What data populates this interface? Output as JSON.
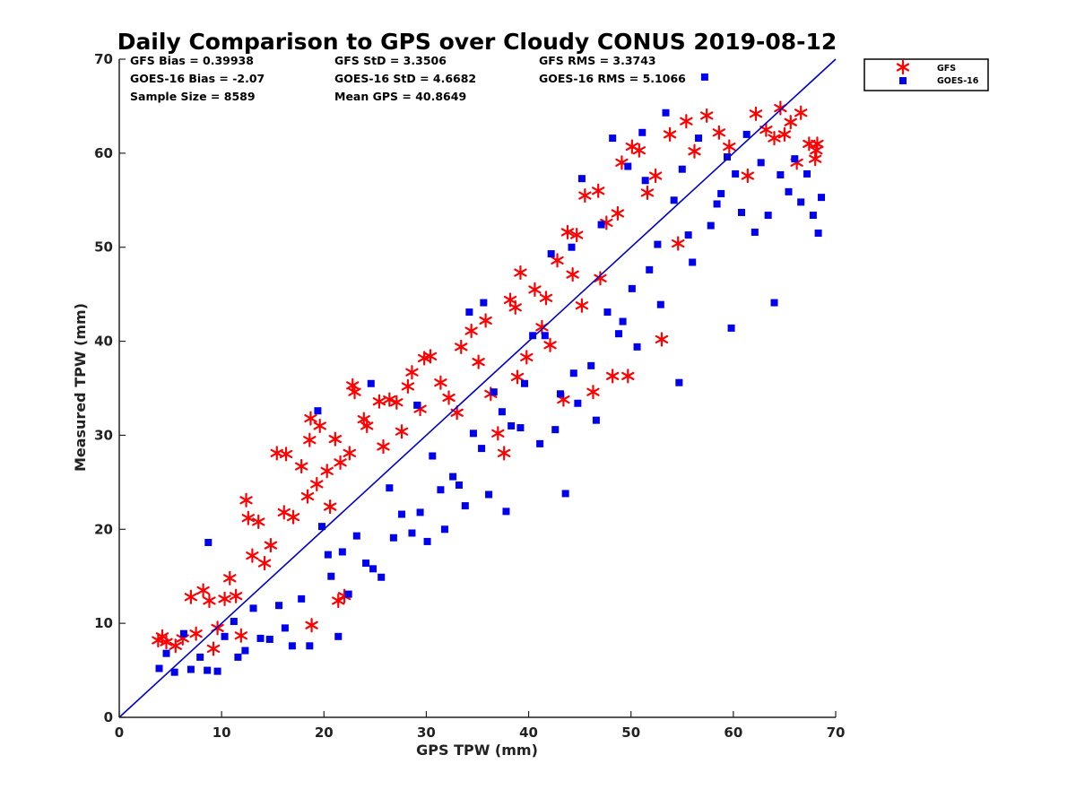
{
  "chart_data": {
    "type": "scatter",
    "title": "Daily Comparison to GPS over Cloudy CONUS 2019-08-12",
    "xlabel": "GPS TPW (mm)",
    "ylabel": "Measured TPW (mm)",
    "xlim": [
      0,
      70
    ],
    "ylim": [
      0,
      70
    ],
    "xticks": [
      "0",
      "10",
      "20",
      "30",
      "40",
      "50",
      "60",
      "70"
    ],
    "yticks": [
      "0",
      "10",
      "20",
      "30",
      "40",
      "50",
      "60",
      "70"
    ],
    "grid": false,
    "legend_position": "outside top-right",
    "reference_line": {
      "from": [
        0,
        0
      ],
      "to": [
        70,
        70
      ],
      "color": "#0000cc"
    },
    "stats": [
      [
        "GFS Bias = 0.39938",
        "GFS StD = 3.3506",
        "GFS RMS = 3.3743"
      ],
      [
        "GOES-16 Bias = -2.07",
        "GOES-16 StD = 4.6682",
        "GOES-16 RMS = 5.1066"
      ],
      [
        "Sample Size = 8589",
        "Mean GPS = 40.8649"
      ]
    ],
    "series": [
      {
        "name": "GFS",
        "marker": "asterisk",
        "color": "#ff0000",
        "points": [
          [
            3.8,
            8.2
          ],
          [
            4.2,
            8.6
          ],
          [
            4.6,
            8.0
          ],
          [
            5.5,
            7.6
          ],
          [
            6.2,
            8.4
          ],
          [
            7.0,
            12.8
          ],
          [
            7.5,
            8.9
          ],
          [
            8.2,
            13.5
          ],
          [
            8.8,
            12.4
          ],
          [
            9.2,
            7.3
          ],
          [
            9.6,
            9.5
          ],
          [
            10.3,
            12.6
          ],
          [
            10.8,
            14.8
          ],
          [
            11.4,
            12.9
          ],
          [
            11.9,
            8.7
          ],
          [
            12.4,
            23.1
          ],
          [
            12.6,
            21.2
          ],
          [
            13.0,
            17.2
          ],
          [
            13.6,
            20.8
          ],
          [
            14.2,
            16.4
          ],
          [
            14.8,
            18.3
          ],
          [
            15.4,
            28.1
          ],
          [
            16.1,
            21.8
          ],
          [
            16.3,
            28.0
          ],
          [
            17.0,
            21.3
          ],
          [
            17.8,
            26.7
          ],
          [
            18.4,
            23.5
          ],
          [
            18.6,
            29.5
          ],
          [
            18.7,
            31.8
          ],
          [
            18.8,
            9.8
          ],
          [
            19.3,
            24.8
          ],
          [
            19.6,
            31.0
          ],
          [
            20.3,
            26.2
          ],
          [
            20.6,
            22.4
          ],
          [
            21.1,
            29.6
          ],
          [
            21.4,
            12.4
          ],
          [
            21.6,
            27.1
          ],
          [
            22.0,
            12.9
          ],
          [
            22.5,
            28.1
          ],
          [
            22.8,
            35.3
          ],
          [
            23.0,
            34.6
          ],
          [
            23.9,
            31.7
          ],
          [
            24.2,
            31.0
          ],
          [
            25.4,
            33.6
          ],
          [
            25.8,
            28.8
          ],
          [
            26.4,
            33.8
          ],
          [
            27.1,
            33.5
          ],
          [
            27.6,
            30.4
          ],
          [
            28.2,
            35.2
          ],
          [
            28.6,
            36.7
          ],
          [
            29.4,
            32.8
          ],
          [
            29.8,
            38.2
          ],
          [
            30.4,
            38.4
          ],
          [
            31.4,
            35.6
          ],
          [
            32.2,
            34.0
          ],
          [
            33.0,
            32.4
          ],
          [
            33.4,
            39.4
          ],
          [
            34.4,
            41.1
          ],
          [
            35.1,
            37.8
          ],
          [
            35.8,
            42.2
          ],
          [
            36.3,
            34.4
          ],
          [
            37.0,
            30.2
          ],
          [
            37.6,
            28.1
          ],
          [
            38.2,
            44.4
          ],
          [
            38.7,
            43.6
          ],
          [
            38.9,
            36.2
          ],
          [
            39.2,
            47.3
          ],
          [
            39.8,
            38.3
          ],
          [
            40.6,
            45.5
          ],
          [
            41.3,
            41.5
          ],
          [
            41.7,
            44.6
          ],
          [
            42.1,
            39.6
          ],
          [
            42.8,
            48.6
          ],
          [
            43.4,
            33.8
          ],
          [
            43.8,
            51.6
          ],
          [
            44.3,
            47.1
          ],
          [
            44.7,
            51.3
          ],
          [
            45.2,
            43.8
          ],
          [
            45.5,
            55.5
          ],
          [
            46.3,
            34.6
          ],
          [
            46.8,
            56.0
          ],
          [
            47.0,
            46.7
          ],
          [
            47.6,
            52.6
          ],
          [
            48.2,
            36.3
          ],
          [
            48.7,
            53.6
          ],
          [
            49.1,
            59.0
          ],
          [
            49.7,
            36.3
          ],
          [
            50.1,
            60.7
          ],
          [
            50.8,
            60.3
          ],
          [
            51.6,
            55.8
          ],
          [
            52.4,
            57.6
          ],
          [
            53.0,
            40.2
          ],
          [
            53.8,
            62.0
          ],
          [
            54.6,
            50.4
          ],
          [
            55.4,
            63.4
          ],
          [
            56.2,
            60.2
          ],
          [
            57.4,
            64.0
          ],
          [
            58.6,
            62.2
          ],
          [
            59.6,
            60.7
          ],
          [
            61.4,
            57.6
          ],
          [
            62.2,
            64.2
          ],
          [
            63.2,
            62.5
          ],
          [
            64.0,
            61.6
          ],
          [
            64.6,
            64.8
          ],
          [
            65.0,
            62.0
          ],
          [
            65.6,
            63.3
          ],
          [
            66.2,
            59.0
          ],
          [
            66.6,
            64.3
          ],
          [
            67.4,
            61.0
          ],
          [
            68.0,
            59.4
          ],
          [
            68.2,
            61.0
          ],
          [
            68.1,
            60.3
          ]
        ]
      },
      {
        "name": "GOES-16",
        "marker": "square",
        "color": "#0000ee",
        "points": [
          [
            3.9,
            5.2
          ],
          [
            4.6,
            6.8
          ],
          [
            5.4,
            4.8
          ],
          [
            6.3,
            8.9
          ],
          [
            7.0,
            5.1
          ],
          [
            7.9,
            6.4
          ],
          [
            8.6,
            5.0
          ],
          [
            8.7,
            18.6
          ],
          [
            9.6,
            4.9
          ],
          [
            10.3,
            8.6
          ],
          [
            11.2,
            10.2
          ],
          [
            11.6,
            6.4
          ],
          [
            12.3,
            7.1
          ],
          [
            13.1,
            11.6
          ],
          [
            13.8,
            8.4
          ],
          [
            14.7,
            8.3
          ],
          [
            15.6,
            11.9
          ],
          [
            16.2,
            9.5
          ],
          [
            16.9,
            7.6
          ],
          [
            17.8,
            12.6
          ],
          [
            18.6,
            7.6
          ],
          [
            19.4,
            32.6
          ],
          [
            19.8,
            20.3
          ],
          [
            20.4,
            17.3
          ],
          [
            20.7,
            15.0
          ],
          [
            21.4,
            8.6
          ],
          [
            21.8,
            17.6
          ],
          [
            22.4,
            13.1
          ],
          [
            23.2,
            19.3
          ],
          [
            24.1,
            16.4
          ],
          [
            24.6,
            35.5
          ],
          [
            24.8,
            15.8
          ],
          [
            25.6,
            14.9
          ],
          [
            26.4,
            24.4
          ],
          [
            26.8,
            19.1
          ],
          [
            27.6,
            21.6
          ],
          [
            28.6,
            19.6
          ],
          [
            29.1,
            33.2
          ],
          [
            29.4,
            21.8
          ],
          [
            30.1,
            18.7
          ],
          [
            30.6,
            27.8
          ],
          [
            31.4,
            24.2
          ],
          [
            31.8,
            20.0
          ],
          [
            32.6,
            25.6
          ],
          [
            33.2,
            24.7
          ],
          [
            33.8,
            22.5
          ],
          [
            34.2,
            43.1
          ],
          [
            34.6,
            30.2
          ],
          [
            35.4,
            28.6
          ],
          [
            35.6,
            44.1
          ],
          [
            36.1,
            23.7
          ],
          [
            36.6,
            34.6
          ],
          [
            37.4,
            32.5
          ],
          [
            37.8,
            21.9
          ],
          [
            38.3,
            31.0
          ],
          [
            39.2,
            30.8
          ],
          [
            39.6,
            35.5
          ],
          [
            40.4,
            40.6
          ],
          [
            41.1,
            29.1
          ],
          [
            41.6,
            40.6
          ],
          [
            42.2,
            49.3
          ],
          [
            42.6,
            30.6
          ],
          [
            43.1,
            34.4
          ],
          [
            43.6,
            23.8
          ],
          [
            44.2,
            50.0
          ],
          [
            44.4,
            36.6
          ],
          [
            44.8,
            33.4
          ],
          [
            45.2,
            57.3
          ],
          [
            46.1,
            37.4
          ],
          [
            46.6,
            31.6
          ],
          [
            47.1,
            52.4
          ],
          [
            47.7,
            43.1
          ],
          [
            48.2,
            61.6
          ],
          [
            48.8,
            40.8
          ],
          [
            49.2,
            42.1
          ],
          [
            49.7,
            58.6
          ],
          [
            50.1,
            45.6
          ],
          [
            50.6,
            39.4
          ],
          [
            51.1,
            62.2
          ],
          [
            51.4,
            57.1
          ],
          [
            51.8,
            47.6
          ],
          [
            52.6,
            50.3
          ],
          [
            52.9,
            43.9
          ],
          [
            53.4,
            64.3
          ],
          [
            54.2,
            55.0
          ],
          [
            54.7,
            35.6
          ],
          [
            55.0,
            58.3
          ],
          [
            55.6,
            51.3
          ],
          [
            56.0,
            48.4
          ],
          [
            56.6,
            61.6
          ],
          [
            57.2,
            68.1
          ],
          [
            57.8,
            52.3
          ],
          [
            58.4,
            54.6
          ],
          [
            58.8,
            55.7
          ],
          [
            59.4,
            59.6
          ],
          [
            59.8,
            41.4
          ],
          [
            60.2,
            57.8
          ],
          [
            60.8,
            53.7
          ],
          [
            61.3,
            62.0
          ],
          [
            62.1,
            51.6
          ],
          [
            62.7,
            59.0
          ],
          [
            63.4,
            53.4
          ],
          [
            64.0,
            44.1
          ],
          [
            64.6,
            57.7
          ],
          [
            65.4,
            55.9
          ],
          [
            66.0,
            59.4
          ],
          [
            66.6,
            54.8
          ],
          [
            67.2,
            57.8
          ],
          [
            67.8,
            53.4
          ],
          [
            68.3,
            51.5
          ],
          [
            68.6,
            55.3
          ]
        ]
      }
    ]
  }
}
